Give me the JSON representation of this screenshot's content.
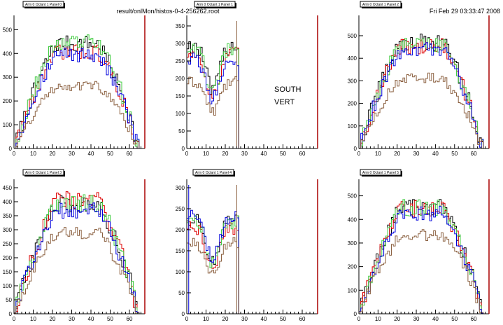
{
  "header": {
    "file_label": "result/onlMon/histos-0-4-256262.root",
    "datetime": "Fri Feb 29 03:33:47 2008"
  },
  "annotation": {
    "line1": "SOUTH",
    "line2": "VERT"
  },
  "colors": {
    "black": "#000000",
    "red": "#dd0000",
    "green": "#44cc44",
    "blue": "#0000dd",
    "brown": "#8b6040",
    "frame_right": "#aa0000"
  },
  "chart_data": [
    {
      "type": "histogram",
      "title": "Arm 0 Octant 1 Panel 0",
      "xlim": [
        0,
        68
      ],
      "ylim": [
        0,
        560
      ],
      "xticks": [
        "0",
        "10",
        "20",
        "30",
        "40",
        "50",
        "60"
      ],
      "xtick_values": [
        0,
        10,
        20,
        30,
        40,
        50,
        60
      ],
      "yticks": [
        "100",
        "200",
        "300",
        "400",
        "500"
      ],
      "ytick_values": [
        100,
        200,
        300,
        400,
        500
      ],
      "profile": "arch",
      "active_bins": [
        0,
        64
      ],
      "line_values": [],
      "series": [
        {
          "color": "black",
          "level": 440
        },
        {
          "color": "red",
          "level": 405
        },
        {
          "color": "green",
          "level": 445
        },
        {
          "color": "blue",
          "level": 395
        },
        {
          "color": "brown",
          "level": 265
        }
      ]
    },
    {
      "type": "histogram",
      "title": "Arm 0 Octant 1 Panel 1",
      "xlim": [
        0,
        68
      ],
      "ylim": [
        0,
        380
      ],
      "xticks": [
        "0",
        "10",
        "20",
        "30",
        "40",
        "50",
        "60"
      ],
      "xtick_values": [
        0,
        10,
        20,
        30,
        40,
        50,
        60
      ],
      "yticks": [
        "50",
        "100",
        "150",
        "200",
        "250",
        "300",
        "350"
      ],
      "ytick_values": [
        50,
        100,
        150,
        200,
        250,
        300,
        350
      ],
      "profile": "dip",
      "active_bins": [
        0,
        26
      ],
      "line_values": [
        26
      ],
      "series": [
        {
          "color": "black",
          "level": 295
        },
        {
          "color": "red",
          "level": 270
        },
        {
          "color": "green",
          "level": 285
        },
        {
          "color": "blue",
          "level": 255
        },
        {
          "color": "brown",
          "level": 190
        }
      ]
    },
    {
      "type": "histogram",
      "title": "Arm 0 Octant 1 Panel 2",
      "xlim": [
        0,
        68
      ],
      "ylim": [
        0,
        590
      ],
      "xticks": [
        "0",
        "10",
        "20",
        "30",
        "40",
        "50",
        "60"
      ],
      "xtick_values": [
        0,
        10,
        20,
        30,
        40,
        50,
        60
      ],
      "yticks": [
        "100",
        "200",
        "300",
        "400",
        "500"
      ],
      "ytick_values": [
        100,
        200,
        300,
        400,
        500
      ],
      "profile": "arch",
      "active_bins": [
        0,
        64
      ],
      "line_values": [],
      "series": [
        {
          "color": "black",
          "level": 470
        },
        {
          "color": "red",
          "level": 455
        },
        {
          "color": "green",
          "level": 460
        },
        {
          "color": "blue",
          "level": 440
        },
        {
          "color": "brown",
          "level": 310
        }
      ]
    },
    {
      "type": "histogram",
      "title": "Arm 0 Octant 1 Panel 3",
      "xlim": [
        0,
        68
      ],
      "ylim": [
        0,
        480
      ],
      "xticks": [
        "0",
        "10",
        "20",
        "30",
        "40",
        "50",
        "60"
      ],
      "xtick_values": [
        0,
        10,
        20,
        30,
        40,
        50,
        60
      ],
      "yticks": [
        "50",
        "100",
        "150",
        "200",
        "250",
        "300",
        "350",
        "400",
        "450"
      ],
      "ytick_values": [
        50,
        100,
        150,
        200,
        250,
        300,
        350,
        400,
        450
      ],
      "profile": "arch",
      "active_bins": [
        0,
        64
      ],
      "line_values": [],
      "series": [
        {
          "color": "black",
          "level": 390
        },
        {
          "color": "red",
          "level": 405
        },
        {
          "color": "green",
          "level": 395
        },
        {
          "color": "blue",
          "level": 370
        },
        {
          "color": "brown",
          "level": 290
        }
      ]
    },
    {
      "type": "histogram",
      "title": "Arm 0 Octant 1 Panel 4",
      "xlim": [
        0,
        68
      ],
      "ylim": [
        0,
        320
      ],
      "xticks": [
        "0",
        "10",
        "20",
        "30",
        "40",
        "50",
        "60"
      ],
      "xtick_values": [
        0,
        10,
        20,
        30,
        40,
        50,
        60
      ],
      "yticks": [
        "50",
        "100",
        "150",
        "200",
        "250",
        "300"
      ],
      "ytick_values": [
        50,
        100,
        150,
        200,
        250,
        300
      ],
      "profile": "dip",
      "active_bins": [
        0,
        26
      ],
      "line_values": [
        1,
        26
      ],
      "series": [
        {
          "color": "black",
          "level": 225
        },
        {
          "color": "red",
          "level": 205
        },
        {
          "color": "green",
          "level": 220
        },
        {
          "color": "blue",
          "level": 230
        },
        {
          "color": "brown",
          "level": 170
        }
      ]
    },
    {
      "type": "histogram",
      "title": "Arm 0 Octant 1 Panel 5",
      "xlim": [
        0,
        68
      ],
      "ylim": [
        0,
        570
      ],
      "xticks": [
        "0",
        "10",
        "20",
        "30",
        "40",
        "50",
        "60"
      ],
      "xtick_values": [
        0,
        10,
        20,
        30,
        40,
        50,
        60
      ],
      "yticks": [
        "100",
        "200",
        "300",
        "400",
        "500"
      ],
      "ytick_values": [
        100,
        200,
        300,
        400,
        500
      ],
      "profile": "arch",
      "active_bins": [
        0,
        64
      ],
      "line_values": [],
      "series": [
        {
          "color": "black",
          "level": 455
        },
        {
          "color": "red",
          "level": 445
        },
        {
          "color": "green",
          "level": 450
        },
        {
          "color": "blue",
          "level": 425
        },
        {
          "color": "brown",
          "level": 335
        }
      ]
    }
  ]
}
